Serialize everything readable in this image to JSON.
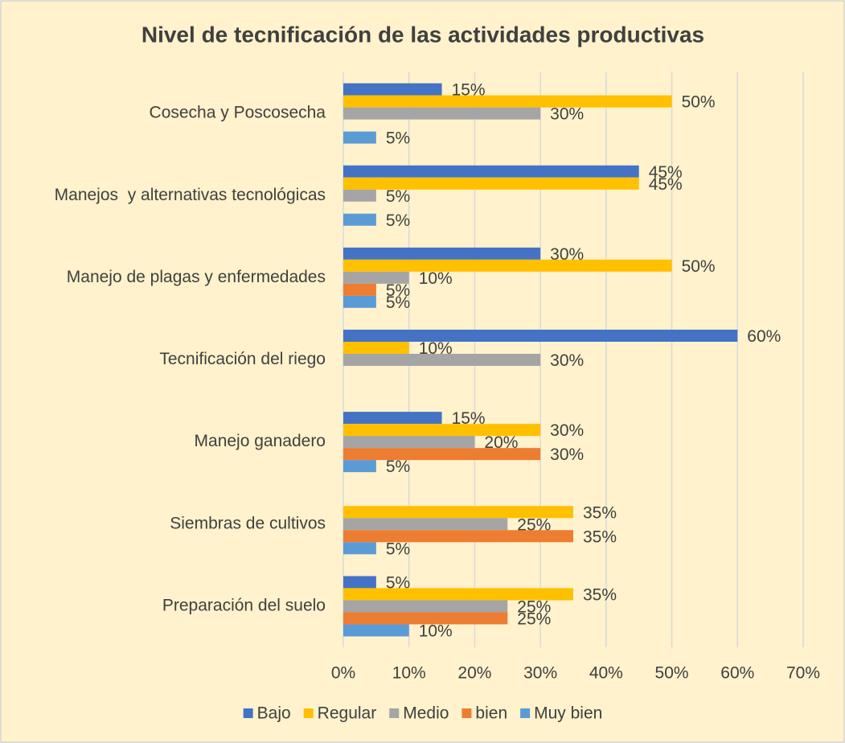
{
  "chart_data": {
    "type": "hbar",
    "title": "Nivel de tecnificación de las actividades productivas",
    "categories": [
      "Cosecha y Poscosecha",
      "Manejos  y alternativas tecnológicas",
      "Manejo de plagas y enfermedades",
      "Tecnificación del riego",
      "Manejo ganadero",
      "Siembras de cultivos",
      "Preparación del suelo"
    ],
    "series": [
      {
        "name": "Bajo",
        "color": "#4472c4",
        "values": [
          15,
          45,
          30,
          60,
          15,
          null,
          5
        ],
        "value_labels": [
          "15%",
          "45%",
          "30%",
          "60%",
          "15%",
          null,
          "5%"
        ]
      },
      {
        "name": "Regular",
        "color": "#ffc000",
        "values": [
          50,
          45,
          50,
          10,
          30,
          35,
          35
        ],
        "value_labels": [
          "50%",
          "45%",
          "50%",
          "10%",
          "30%",
          "35%",
          "35%"
        ]
      },
      {
        "name": "Medio",
        "color": "#a5a5a5",
        "values": [
          30,
          5,
          10,
          30,
          20,
          25,
          25
        ],
        "value_labels": [
          "30%",
          "5%",
          "10%",
          "30%",
          "20%",
          "25%",
          "25%"
        ]
      },
      {
        "name": "bien",
        "color": "#ed7d31",
        "values": [
          null,
          null,
          5,
          null,
          30,
          35,
          25
        ],
        "value_labels": [
          null,
          null,
          "5%",
          null,
          "30%",
          "35%",
          "25%"
        ]
      },
      {
        "name": "Muy bien",
        "color": "#5b9bd5",
        "values": [
          5,
          5,
          5,
          null,
          5,
          5,
          10
        ],
        "value_labels": [
          "5%",
          "5%",
          "5%",
          null,
          "5%",
          "5%",
          "10%"
        ]
      }
    ],
    "xlim": [
      0,
      70
    ],
    "xticks": [
      {
        "value": 0,
        "label": "0%"
      },
      {
        "value": 10,
        "label": "10%"
      },
      {
        "value": 20,
        "label": "20%"
      },
      {
        "value": 30,
        "label": "30%"
      },
      {
        "value": 40,
        "label": "40%"
      },
      {
        "value": 50,
        "label": "50%"
      },
      {
        "value": 60,
        "label": "60%"
      },
      {
        "value": 70,
        "label": "70%"
      }
    ],
    "grid": true,
    "legend": "bottom"
  }
}
